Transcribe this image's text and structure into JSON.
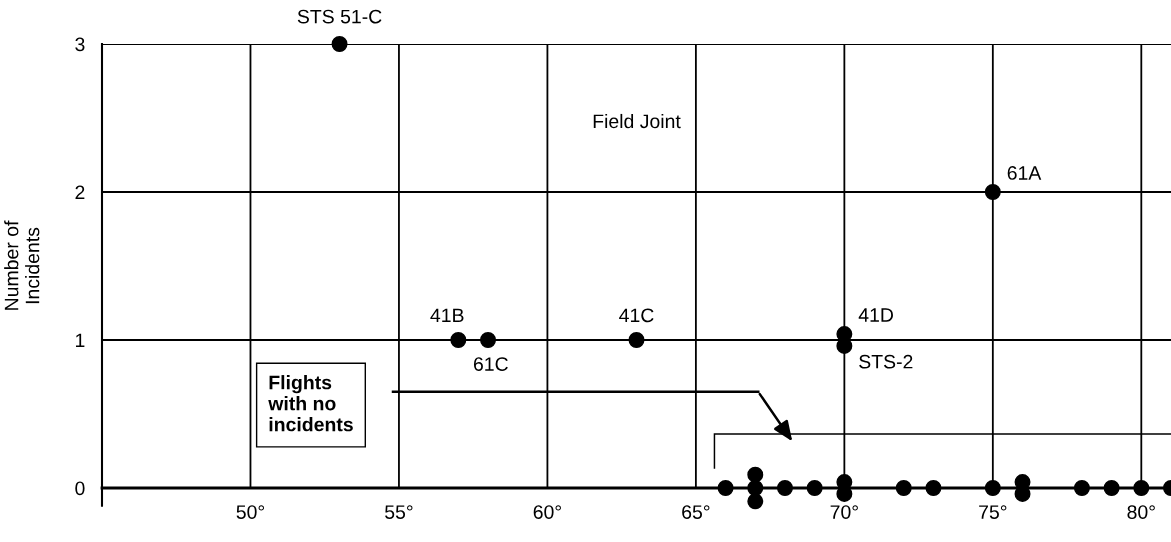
{
  "chart_data": {
    "type": "scatter",
    "title": "Field Joint",
    "ylabel": "Number of\nIncidents",
    "x": [
      53,
      57,
      58,
      63,
      70,
      70,
      75,
      66,
      67,
      67,
      67,
      68,
      69,
      70,
      70,
      72,
      73,
      75,
      76,
      76,
      78,
      79,
      80,
      81
    ],
    "series": [
      {
        "color": "#000000",
        "values": [
          3,
          1,
          1,
          1,
          1.04,
          0.96,
          2,
          0,
          0.09,
          0,
          -0.09,
          0,
          0,
          0.04,
          -0.04,
          0,
          0,
          0,
          0.04,
          -0.04,
          0,
          0,
          0,
          0
        ]
      }
    ],
    "xlim": [
      45,
      81
    ],
    "ylim": [
      -0.12,
      3
    ],
    "xticks": [
      {
        "value": 50,
        "label": "50°"
      },
      {
        "value": 55,
        "label": "55°"
      },
      {
        "value": 60,
        "label": "60°"
      },
      {
        "value": 65,
        "label": "65°"
      },
      {
        "value": 70,
        "label": "70°"
      },
      {
        "value": 75,
        "label": "75°"
      },
      {
        "value": 80,
        "label": "80°"
      }
    ],
    "yticks": [
      0,
      1,
      2,
      3
    ],
    "grid": true,
    "marker": "circle",
    "annotations": [
      {
        "text": "STS 51-C",
        "x": 53,
        "y": 3
      },
      {
        "text": "41B",
        "x": 57,
        "y": 1
      },
      {
        "text": "61C",
        "x": 58,
        "y": 1
      },
      {
        "text": "41C",
        "x": 63,
        "y": 1
      },
      {
        "text": "41D",
        "x": 70,
        "y": 1.04
      },
      {
        "text": "STS-2",
        "x": 70,
        "y": 0.96
      },
      {
        "text": "61A",
        "x": 75,
        "y": 2
      },
      "Flights\nwith no\nincidents"
    ]
  }
}
